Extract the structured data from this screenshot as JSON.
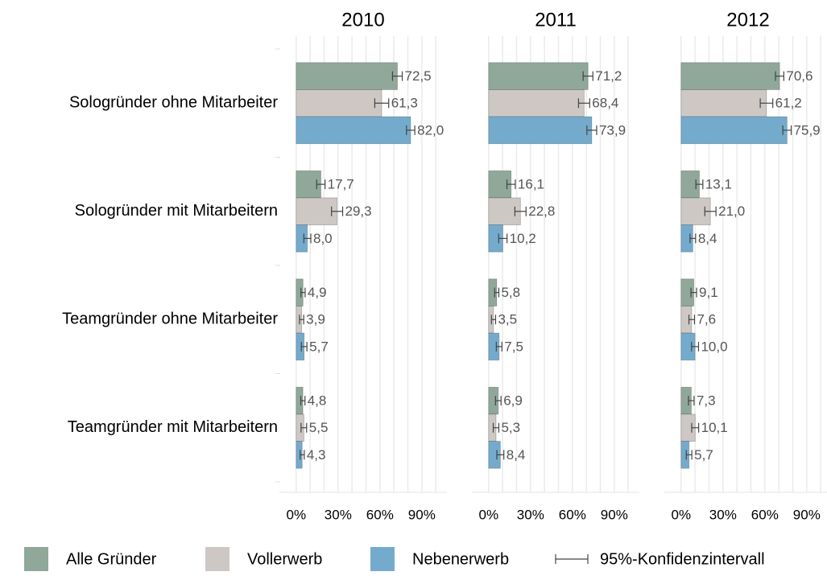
{
  "chart_data": {
    "type": "bar",
    "panels": [
      "2010",
      "2011",
      "2012"
    ],
    "categories": [
      "Sologründer ohne Mitarbeiter",
      "Sologründer mit Mitarbeitern",
      "Teamgründer ohne Mitarbeiter",
      "Teamgründer mit Mitarbeitern"
    ],
    "series": [
      {
        "name": "Alle Gründer",
        "color": "#8fa89a",
        "values": [
          [
            72.5,
            17.7,
            4.9,
            4.8
          ],
          [
            71.2,
            16.1,
            5.8,
            6.9
          ],
          [
            70.6,
            13.1,
            9.1,
            7.3
          ]
        ],
        "value_labels": [
          [
            "72,5",
            "17,7",
            "4,9",
            "4,8"
          ],
          [
            "71,2",
            "16,1",
            "5,8",
            "6,9"
          ],
          [
            "70,6",
            "13,1",
            "9,1",
            "7,3"
          ]
        ],
        "errors": [
          [
            3.5,
            3,
            1.5,
            1.5
          ],
          [
            3.5,
            3,
            1.5,
            2
          ],
          [
            3,
            2.5,
            2,
            2
          ]
        ]
      },
      {
        "name": "Vollerwerb",
        "color": "#cdc8c4",
        "values": [
          [
            61.3,
            29.3,
            3.9,
            5.5
          ],
          [
            68.4,
            22.8,
            3.5,
            5.3
          ],
          [
            61.2,
            21.0,
            7.6,
            10.1
          ]
        ],
        "value_labels": [
          [
            "61,3",
            "29,3",
            "3,9",
            "5,5"
          ],
          [
            "68,4",
            "22,8",
            "3,5",
            "5,3"
          ],
          [
            "61,2",
            "21,0",
            "7,6",
            "10,1"
          ]
        ],
        "errors": [
          [
            5,
            4,
            1.5,
            2
          ],
          [
            4,
            4,
            1.5,
            2
          ],
          [
            4.5,
            4,
            2,
            2.5
          ]
        ]
      },
      {
        "name": "Nebenerwerb",
        "color": "#74abcc",
        "values": [
          [
            82.0,
            8.0,
            5.7,
            4.3
          ],
          [
            73.9,
            10.2,
            7.5,
            8.4
          ],
          [
            75.9,
            8.4,
            10.0,
            5.7
          ]
        ],
        "value_labels": [
          [
            "82,0",
            "8,0",
            "5,7",
            "4,3"
          ],
          [
            "73,9",
            "10,2",
            "7,5",
            "8,4"
          ],
          [
            "75,9",
            "8,4",
            "10,0",
            "5,7"
          ]
        ],
        "errors": [
          [
            3,
            2.5,
            2,
            1.5
          ],
          [
            3.5,
            3,
            2,
            2.5
          ],
          [
            3,
            2,
            2.5,
            2
          ]
        ]
      }
    ],
    "error_label": "95%-Konfidenzintervall",
    "xlim": [
      -12,
      108
    ],
    "xticks": [
      {
        "value": 0,
        "label": "0%"
      },
      {
        "value": 30,
        "label": "30%"
      },
      {
        "value": 60,
        "label": "60%"
      },
      {
        "value": 90,
        "label": "90%"
      }
    ],
    "minor_xticks": [
      10,
      20,
      40,
      50,
      70,
      80,
      100
    ],
    "grid": true
  }
}
